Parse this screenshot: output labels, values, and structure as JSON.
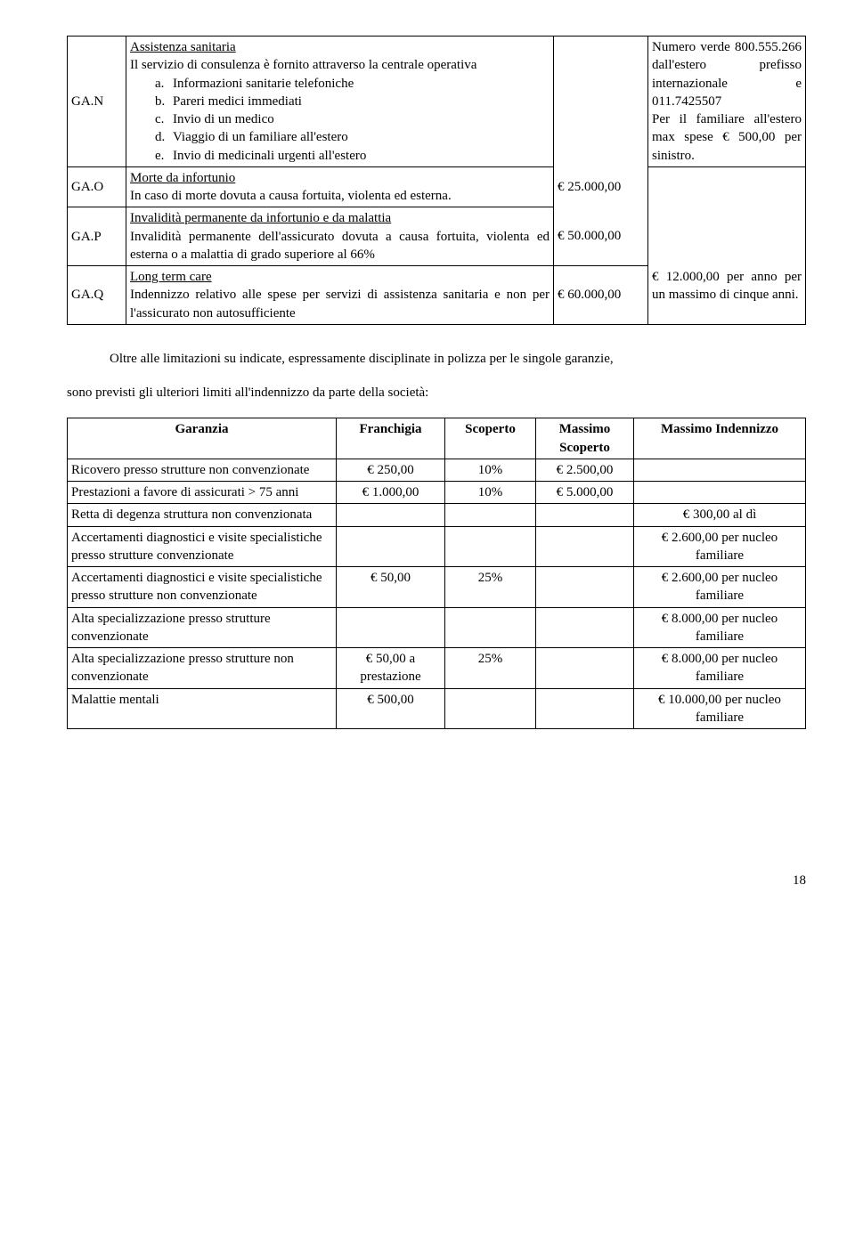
{
  "table1": {
    "rows": [
      {
        "code": "GA.N",
        "title": "Assistenza sanitaria",
        "body_line": "Il servizio di consulenza è fornito attraverso la centrale operativa",
        "items": [
          {
            "l": "a.",
            "t": "Informazioni sanitarie telefoniche"
          },
          {
            "l": "b.",
            "t": "Pareri medici immediati"
          },
          {
            "l": "c.",
            "t": "Invio di un medico"
          },
          {
            "l": "d.",
            "t": "Viaggio di un familiare all'estero"
          },
          {
            "l": "e.",
            "t": "Invio di medicinali urgenti all'estero"
          }
        ],
        "amount": "",
        "note_lines": [
          "Numero verde 800.555.266",
          "dall'estero prefisso internazionale e 011.7425507",
          "Per il familiare all'estero max spese € 500,00 per sinistro."
        ]
      },
      {
        "code": "GA.O",
        "title": "Morte da infortunio",
        "body": "In caso di morte dovuta a causa fortuita, violenta ed esterna.",
        "amount": "€ 25.000,00"
      },
      {
        "code": "GA.P",
        "title": "Invalidità permanente da infortunio e da malattia",
        "body": "Invalidità permanente dell'assicurato dovuta a causa fortuita, violenta ed esterna o a malattia di grado superiore al 66%",
        "amount": "€ 50.000,00"
      },
      {
        "code": "GA.Q",
        "title": "Long term care",
        "body": "Indennizzo relativo alle spese per servizi di assistenza sanitaria e non per l'assicurato non autosufficiente",
        "amount": "€ 60.000,00",
        "note": "€ 12.000,00 per anno per un massimo di cinque anni."
      }
    ]
  },
  "paragraph1": "Oltre alle limitazioni su indicate, espressamente disciplinate in polizza per le singole garanzie,",
  "paragraph2": "sono previsti gli ulteriori limiti all'indennizzo da parte della società:",
  "table2": {
    "headers": [
      "Garanzia",
      "Franchigia",
      "Scoperto",
      "Massimo Scoperto",
      "Massimo Indennizzo"
    ],
    "rows": [
      {
        "c1": "Ricovero presso strutture non convenzionate",
        "c2": "€ 250,00",
        "c3": "10%",
        "c4": "€ 2.500,00",
        "c5": ""
      },
      {
        "c1": "Prestazioni a favore di assicurati > 75 anni",
        "c2": "€ 1.000,00",
        "c3": "10%",
        "c4": "€ 5.000,00",
        "c5": ""
      },
      {
        "c1": "Retta di degenza struttura non convenzionata",
        "c2": "",
        "c3": "",
        "c4": "",
        "c5": "€ 300,00 al dì"
      },
      {
        "c1": "Accertamenti diagnostici e visite specialistiche presso strutture convenzionate",
        "c2": "",
        "c3": "",
        "c4": "",
        "c5": "€ 2.600,00 per nucleo familiare"
      },
      {
        "c1": "Accertamenti diagnostici e visite specialistiche presso strutture non convenzionate",
        "c2": "€ 50,00",
        "c3": "25%",
        "c4": "",
        "c5": "€ 2.600,00 per nucleo familiare"
      },
      {
        "c1": "Alta specializzazione presso strutture convenzionate",
        "c2": "",
        "c3": "",
        "c4": "",
        "c5": "€ 8.000,00 per nucleo familiare"
      },
      {
        "c1": "Alta specializzazione presso strutture non convenzionate",
        "c2": "€ 50,00 a prestazione",
        "c3": "25%",
        "c4": "",
        "c5": "€ 8.000,00 per nucleo familiare"
      },
      {
        "c1": "Malattie mentali",
        "c2": "€ 500,00",
        "c3": "",
        "c4": "",
        "c5": "€ 10.000,00 per nucleo familiare"
      }
    ]
  },
  "page_number": "18"
}
